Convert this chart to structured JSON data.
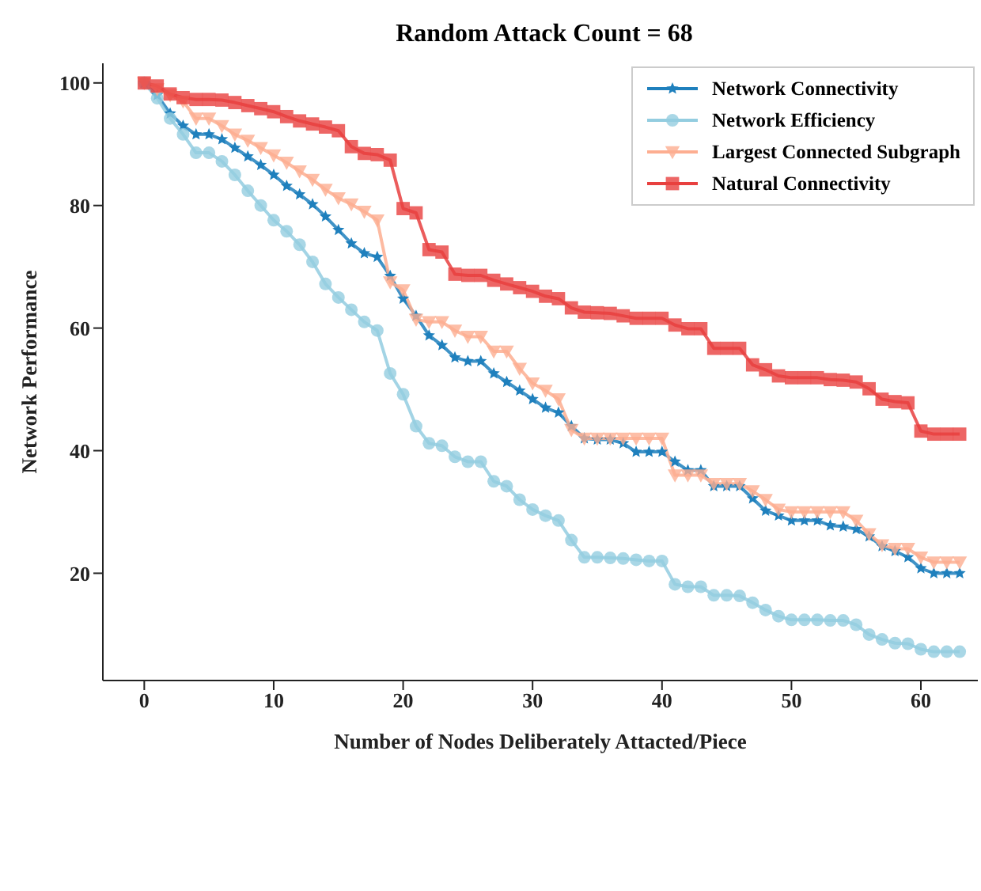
{
  "chart_data": {
    "type": "line",
    "title": "Random Attack Count = 68",
    "xlabel": "Number of Nodes Deliberately Attacted/Piece",
    "ylabel": "Network Performance",
    "x": [
      0,
      1,
      2,
      3,
      4,
      5,
      6,
      7,
      8,
      9,
      10,
      11,
      12,
      13,
      14,
      15,
      16,
      17,
      18,
      19,
      20,
      21,
      22,
      23,
      24,
      25,
      26,
      27,
      28,
      29,
      30,
      31,
      32,
      33,
      34,
      35,
      36,
      37,
      38,
      39,
      40,
      41,
      42,
      43,
      44,
      45,
      46,
      47,
      48,
      49,
      50,
      51,
      52,
      53,
      54,
      55,
      56,
      57,
      58,
      59,
      60,
      61,
      62,
      63
    ],
    "xlim": [
      -3.2,
      64.4
    ],
    "xticks": [
      0,
      10,
      20,
      30,
      40,
      50,
      60
    ],
    "ylim": [
      2.5,
      103.2
    ],
    "yticks": [
      20,
      40,
      60,
      80,
      100
    ],
    "grid": false,
    "legend": "top right",
    "line_style": "solid",
    "series": [
      {
        "name": "Network Connectivity",
        "color": "#1f80bd",
        "marker": "star",
        "values": [
          100,
          98,
          95,
          93,
          91.6,
          91.6,
          90.8,
          89.4,
          88,
          86.6,
          85,
          83.2,
          81.8,
          80.2,
          78.2,
          76,
          73.8,
          72.2,
          71.6,
          68.5,
          64.8,
          62,
          58.8,
          57.2,
          55.2,
          54.6,
          54.6,
          52.6,
          51.2,
          49.8,
          48.4,
          47,
          46.2,
          44,
          42,
          41.8,
          41.8,
          41.2,
          39.8,
          39.8,
          39.8,
          38.2,
          36.8,
          36.8,
          34.2,
          34.2,
          34.2,
          32.2,
          30.2,
          29.4,
          28.6,
          28.6,
          28.6,
          27.8,
          27.6,
          27.2,
          26,
          24.4,
          23.6,
          22.6,
          20.8,
          20,
          20,
          20
        ]
      },
      {
        "name": "Network Efficiency",
        "color": "#93cde0",
        "marker": "circle",
        "values": [
          100,
          97.5,
          94.2,
          91.6,
          88.6,
          88.6,
          87.2,
          85,
          82.4,
          80,
          77.6,
          75.8,
          73.6,
          70.8,
          67.2,
          65,
          63,
          61,
          59.6,
          52.6,
          49.2,
          44,
          41.2,
          40.8,
          39,
          38.2,
          38.2,
          35,
          34.2,
          32,
          30.4,
          29.4,
          28.6,
          25.4,
          22.6,
          22.6,
          22.5,
          22.4,
          22.2,
          22,
          22,
          18.2,
          17.8,
          17.8,
          16.4,
          16.4,
          16.3,
          15.2,
          14,
          13,
          12.4,
          12.4,
          12.4,
          12.3,
          12.3,
          11.6,
          10,
          9.2,
          8.6,
          8.5,
          7.6,
          7.2,
          7.2,
          7.2
        ]
      },
      {
        "name": "Largest Connected Subgraph",
        "color": "#fdae91",
        "marker": "triangle",
        "values": [
          100,
          99,
          98,
          97,
          94.2,
          94.2,
          93,
          91.6,
          90.6,
          89.4,
          88.2,
          87,
          85.6,
          84.2,
          82.6,
          81.2,
          80.2,
          79,
          77.6,
          67.5,
          66.2,
          61.4,
          61,
          61,
          59.6,
          58.6,
          58.6,
          56.2,
          56.2,
          53.4,
          51,
          49.8,
          48.4,
          43.4,
          42,
          42,
          42,
          42,
          42,
          42,
          42,
          36,
          36,
          36,
          34.6,
          34.6,
          34.6,
          33.4,
          32,
          30.4,
          30,
          30,
          30,
          30,
          30,
          28.6,
          26.4,
          24.6,
          24,
          24,
          22.6,
          21.8,
          21.8,
          21.8
        ]
      },
      {
        "name": "Natural Connectivity",
        "color": "#e8403f",
        "marker": "square",
        "values": [
          100,
          99.5,
          98.2,
          97.6,
          97.3,
          97.3,
          97.2,
          96.8,
          96.3,
          95.8,
          95.3,
          94.5,
          93.8,
          93.3,
          92.8,
          92.2,
          89.6,
          88.5,
          88.3,
          87.4,
          79.5,
          78.8,
          72.8,
          72.4,
          68.8,
          68.6,
          68.6,
          67.8,
          67.2,
          66.6,
          66,
          65.2,
          64.8,
          63.3,
          62.6,
          62.5,
          62.4,
          62,
          61.6,
          61.6,
          61.6,
          60.5,
          59.9,
          59.9,
          56.7,
          56.7,
          56.7,
          54,
          53.2,
          52.2,
          51.9,
          51.9,
          51.9,
          51.6,
          51.5,
          51.2,
          50.1,
          48.4,
          48,
          47.8,
          43.2,
          42.7,
          42.7,
          42.7
        ]
      }
    ]
  }
}
